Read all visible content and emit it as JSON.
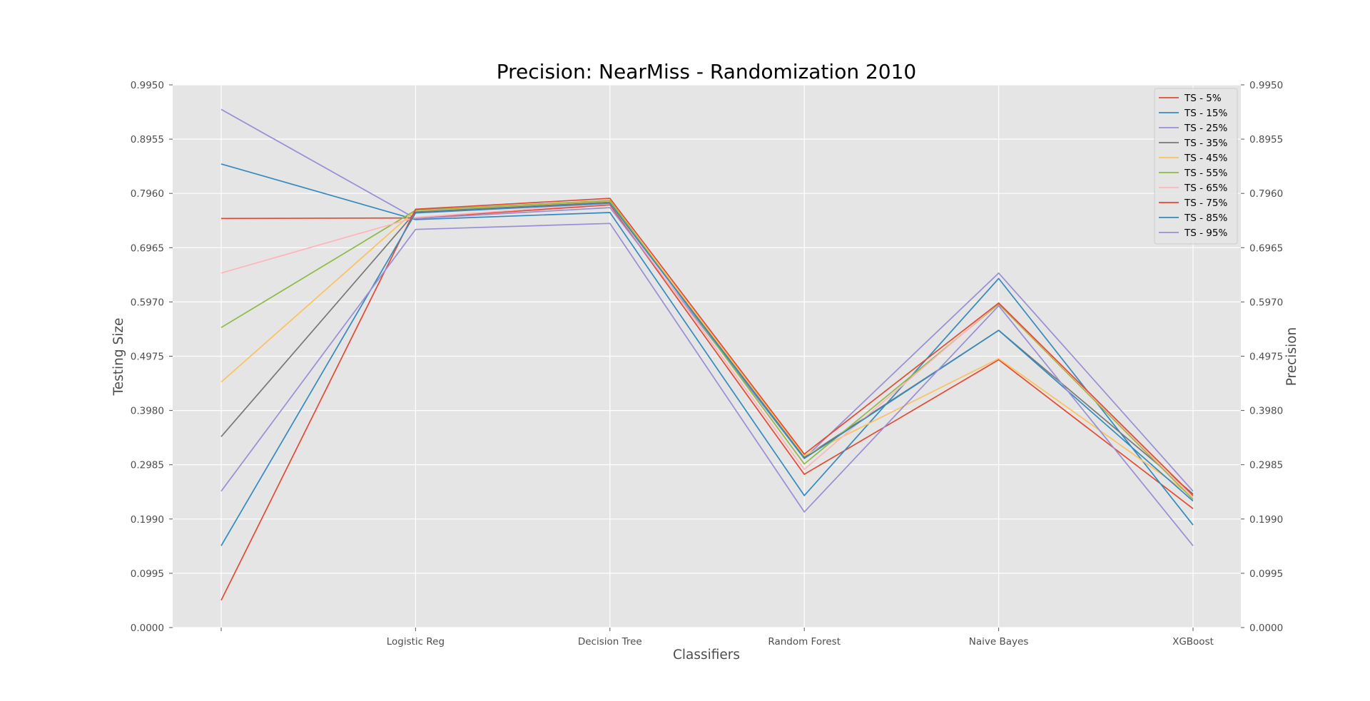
{
  "chart_data": {
    "type": "line",
    "title": "Precision: NearMiss - Randomization 2010",
    "xlabel": "Classifiers",
    "ylabel_left": "Testing Size",
    "ylabel_right": "Precision",
    "categories": [
      "",
      "Logistic Reg",
      "Decision Tree",
      "Random Forest",
      "Naive Bayes",
      "XGBoost"
    ],
    "ylim": [
      0.0,
      0.995
    ],
    "yticks": [
      "0.0000",
      "0.0995",
      "0.1990",
      "0.2985",
      "0.3980",
      "0.4975",
      "0.5970",
      "0.6965",
      "0.7960",
      "0.8955",
      "0.9950"
    ],
    "grid": true,
    "legend_position": "top-right",
    "background": "#e5e5e5",
    "series": [
      {
        "name": "TS - 5%",
        "color": "#e24a33",
        "values": [
          0.75,
          0.751,
          0.775,
          0.281,
          0.491,
          0.218
        ]
      },
      {
        "name": "TS - 15%",
        "color": "#348abd",
        "values": [
          0.85,
          0.748,
          0.761,
          0.242,
          0.64,
          0.188
        ]
      },
      {
        "name": "TS - 25%",
        "color": "#988ed5",
        "values": [
          0.95,
          0.75,
          0.77,
          0.31,
          0.65,
          0.25
        ]
      },
      {
        "name": "TS - 35%",
        "color": "#777777",
        "values": [
          0.35,
          0.762,
          0.78,
          0.312,
          0.545,
          0.245
        ]
      },
      {
        "name": "TS - 45%",
        "color": "#fbc15e",
        "values": [
          0.45,
          0.765,
          0.782,
          0.315,
          0.493,
          0.24
        ]
      },
      {
        "name": "TS - 55%",
        "color": "#8eba42",
        "values": [
          0.55,
          0.765,
          0.783,
          0.3,
          0.593,
          0.235
        ]
      },
      {
        "name": "TS - 65%",
        "color": "#ffb5b8",
        "values": [
          0.65,
          0.752,
          0.778,
          0.29,
          0.595,
          0.238
        ]
      },
      {
        "name": "TS - 75%",
        "color": "#e24a33",
        "values": [
          0.05,
          0.767,
          0.787,
          0.318,
          0.595,
          0.242
        ]
      },
      {
        "name": "TS - 85%",
        "color": "#348abd",
        "values": [
          0.15,
          0.76,
          0.778,
          0.31,
          0.545,
          0.232
        ]
      },
      {
        "name": "TS - 95%",
        "color": "#988ed5",
        "values": [
          0.25,
          0.73,
          0.741,
          0.212,
          0.59,
          0.15
        ]
      }
    ]
  }
}
